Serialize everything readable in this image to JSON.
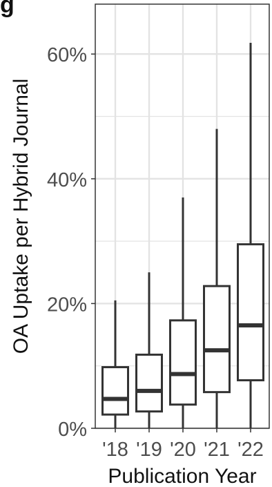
{
  "panel_label": "g",
  "chart_data": {
    "type": "boxplot",
    "title": "",
    "xlabel": "Publication Year",
    "ylabel": "OA Uptake per Hybrid Journal",
    "categories": [
      "'18",
      "'19",
      "'20",
      "'21",
      "'22"
    ],
    "ylim": [
      0,
      0.68
    ],
    "yticks": [
      0,
      0.2,
      0.4,
      0.6
    ],
    "ytick_labels": [
      "0%",
      "20%",
      "40%",
      "60%"
    ],
    "grid": true,
    "boxes": [
      {
        "category": "'18",
        "whisker_low": 0.0,
        "q1": 0.022,
        "median": 0.047,
        "q3": 0.098,
        "whisker_high": 0.205
      },
      {
        "category": "'19",
        "whisker_low": 0.0,
        "q1": 0.027,
        "median": 0.06,
        "q3": 0.118,
        "whisker_high": 0.25
      },
      {
        "category": "'20",
        "whisker_low": 0.0,
        "q1": 0.038,
        "median": 0.087,
        "q3": 0.173,
        "whisker_high": 0.37
      },
      {
        "category": "'21",
        "whisker_low": 0.0,
        "q1": 0.058,
        "median": 0.125,
        "q3": 0.228,
        "whisker_high": 0.48
      },
      {
        "category": "'22",
        "whisker_low": 0.0,
        "q1": 0.077,
        "median": 0.165,
        "q3": 0.295,
        "whisker_high": 0.618
      }
    ],
    "colors": {
      "box": "#333333",
      "grid": "#e3e3e3",
      "panel_border": "#333333",
      "text": "#111111",
      "tick_text": "#4d4d4d"
    }
  }
}
